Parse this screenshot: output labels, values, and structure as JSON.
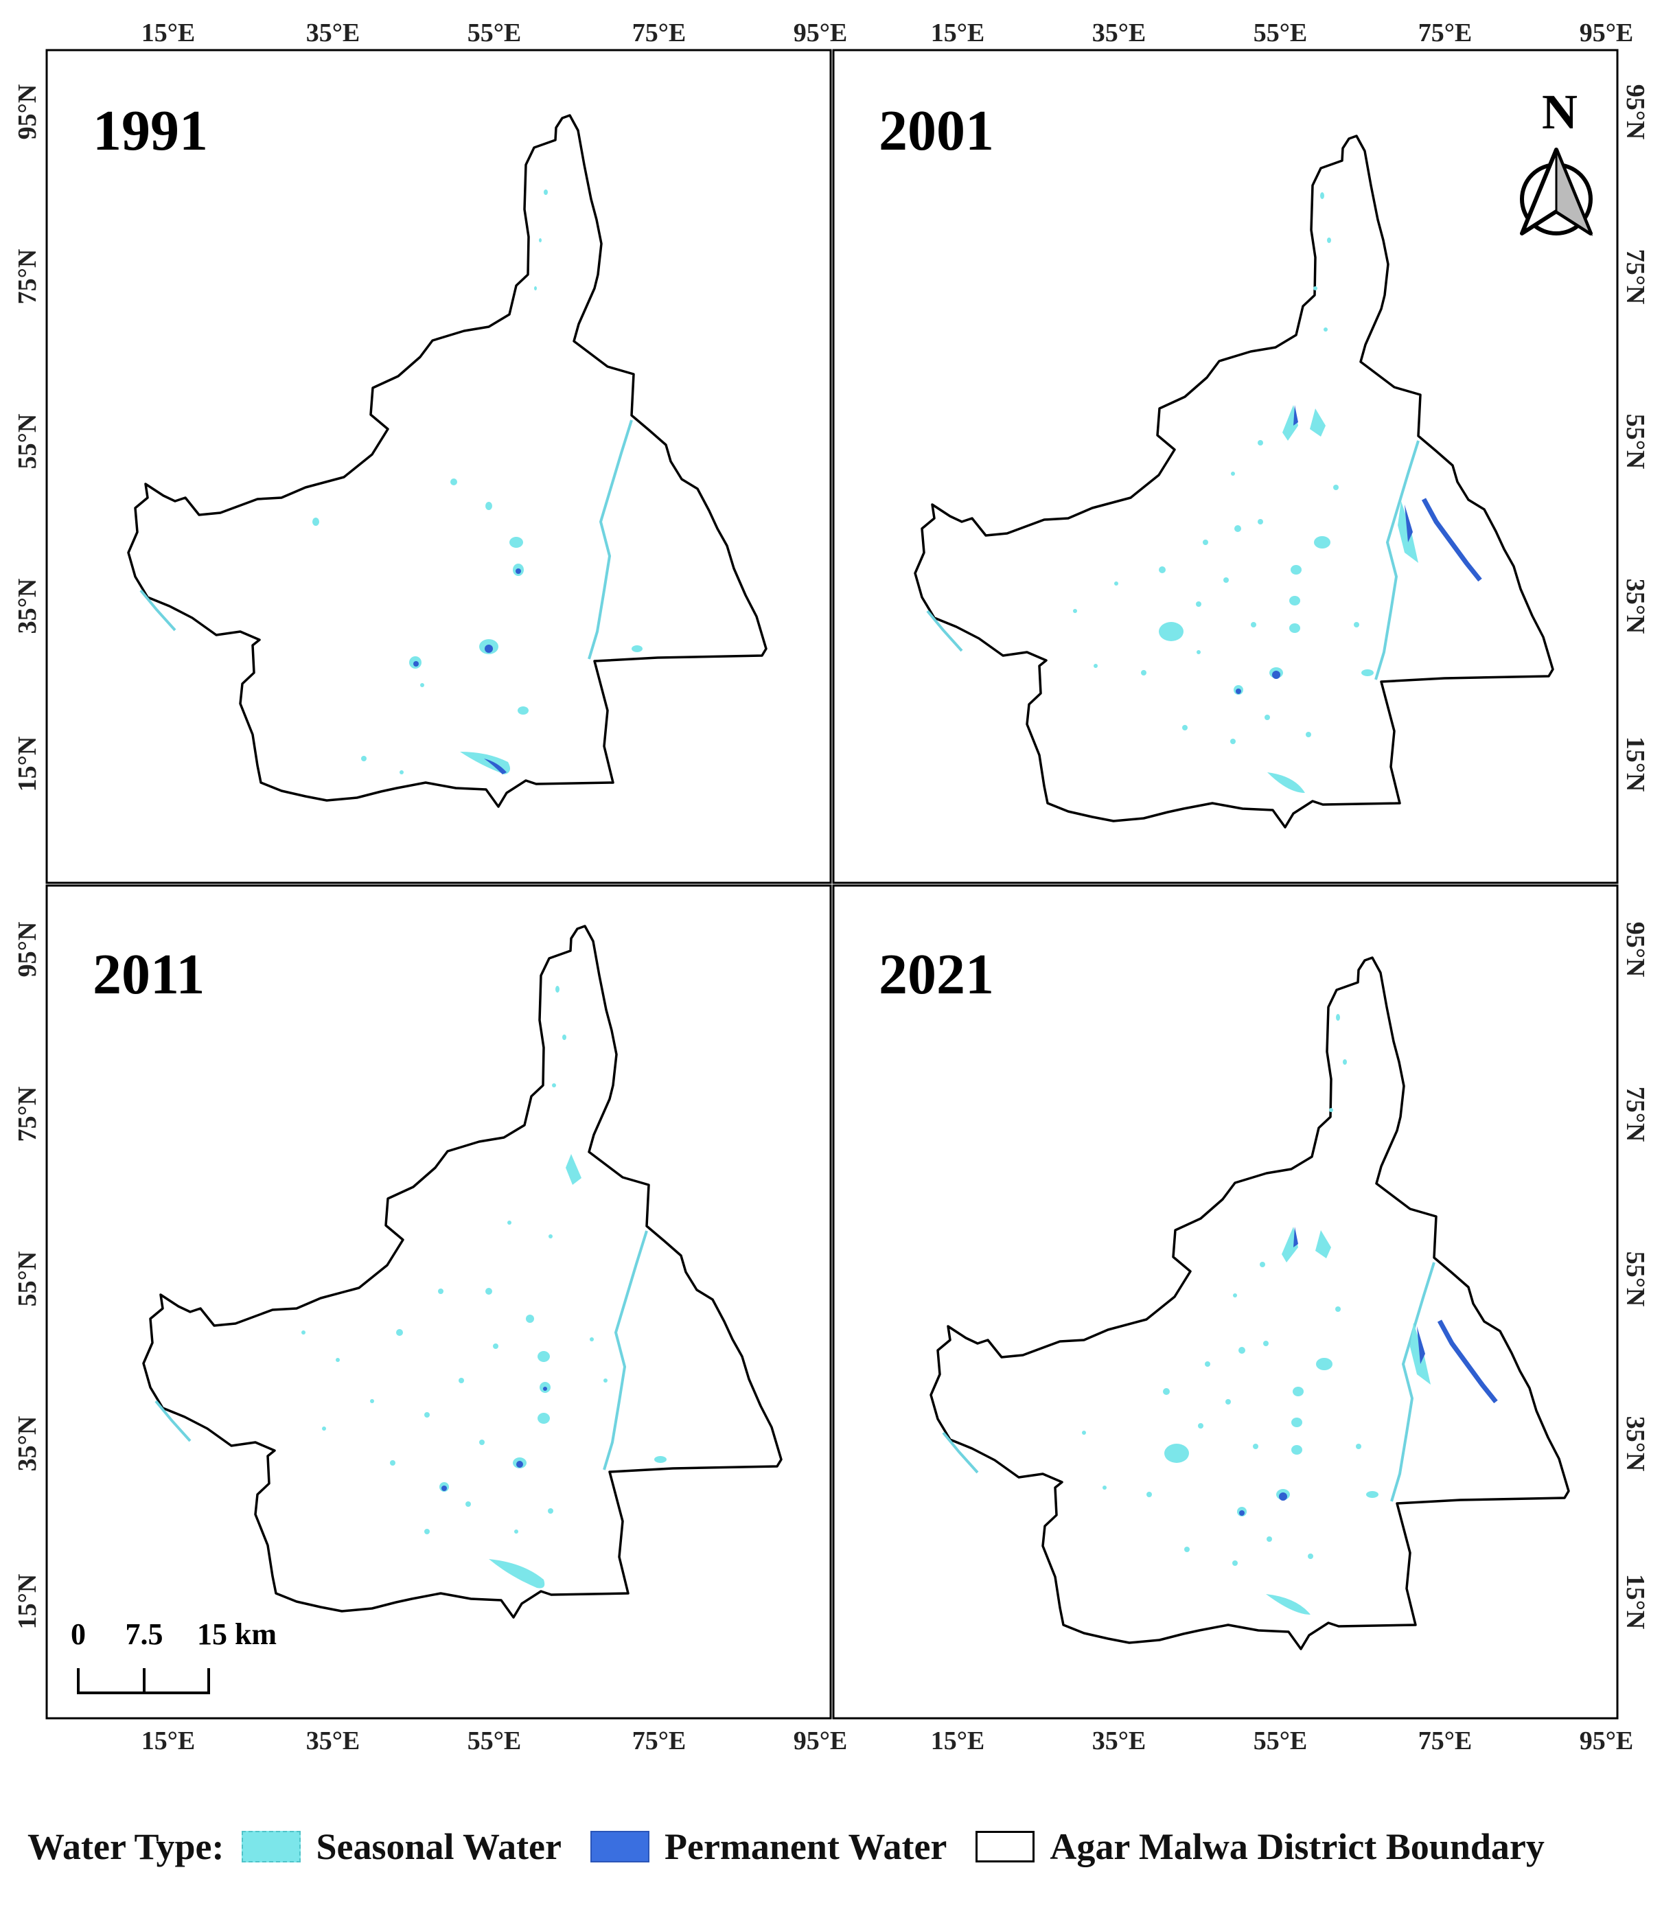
{
  "panels": [
    {
      "year": "1991"
    },
    {
      "year": "2001"
    },
    {
      "year": "2011"
    },
    {
      "year": "2021"
    }
  ],
  "lon_ticks": [
    "15°E",
    "35°E",
    "55°E",
    "75°E",
    "95°E"
  ],
  "lat_ticks": [
    "95°N",
    "75°N",
    "55°N",
    "35°N",
    "15°N"
  ],
  "north_arrow": {
    "label": "N",
    "icon": "north-arrow-icon"
  },
  "scale_bar": {
    "labels": [
      "0",
      "7.5",
      "15 km"
    ]
  },
  "legend": {
    "title": "Water Type:",
    "items": [
      {
        "label": "Seasonal Water",
        "color": "#7ce6ea",
        "border": "#4fc3c9"
      },
      {
        "label": "Permanent Water",
        "color": "#3a6fe0",
        "border": "#2a55b8"
      },
      {
        "label": "Agar Malwa District Boundary",
        "color": "#ffffff",
        "border": "#000000"
      }
    ]
  },
  "colors": {
    "seasonal": "#7ce6ea",
    "permanent": "#2f5fd0",
    "boundary": "#000000",
    "river": "#6fd3df"
  }
}
